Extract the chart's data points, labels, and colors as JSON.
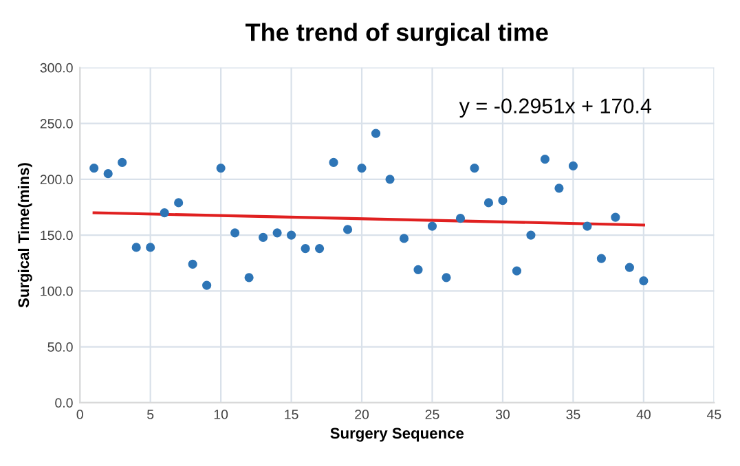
{
  "chart_data": {
    "type": "scatter",
    "title": "The trend of surgical time",
    "xlabel": "Surgery Sequence",
    "ylabel": "Surgical Time(mins)",
    "xlim": [
      0,
      45
    ],
    "xticks": [
      0,
      5,
      10,
      15,
      20,
      25,
      30,
      35,
      40,
      45
    ],
    "ylim": [
      0,
      300
    ],
    "yticks": [
      {
        "value": 0,
        "label": "0.0"
      },
      {
        "value": 50,
        "label": "50.0"
      },
      {
        "value": 100,
        "label": "100.0"
      },
      {
        "value": 150,
        "label": "150.0"
      },
      {
        "value": 200,
        "label": "200.0"
      },
      {
        "value": 250,
        "label": "250.0"
      },
      {
        "value": 300,
        "label": "300.0"
      }
    ],
    "grid": true,
    "legend": false,
    "series": [
      {
        "marker": "circle",
        "color": "#2e75b6",
        "x": [
          1,
          2,
          3,
          4,
          5,
          6,
          7,
          8,
          9,
          10,
          11,
          12,
          13,
          14,
          15,
          16,
          17,
          18,
          19,
          20,
          21,
          22,
          23,
          24,
          25,
          26,
          27,
          28,
          29,
          30,
          31,
          32,
          33,
          34,
          35,
          36,
          37,
          38,
          39,
          40
        ],
        "values": [
          210,
          205,
          215,
          139,
          139,
          170,
          179,
          124,
          105,
          210,
          152,
          112,
          148,
          152,
          150,
          138,
          138,
          215,
          155,
          210,
          241,
          200,
          147,
          119,
          158,
          112,
          165,
          210,
          179,
          181,
          118,
          150,
          218,
          192,
          212,
          158,
          129,
          166,
          121,
          109
        ]
      },
      {
        "type": "line",
        "color": "#e02020",
        "x": [
          1,
          40
        ],
        "values": [
          170,
          159
        ]
      }
    ],
    "annotations": [
      "y = -0.2951x + 170.4"
    ]
  }
}
